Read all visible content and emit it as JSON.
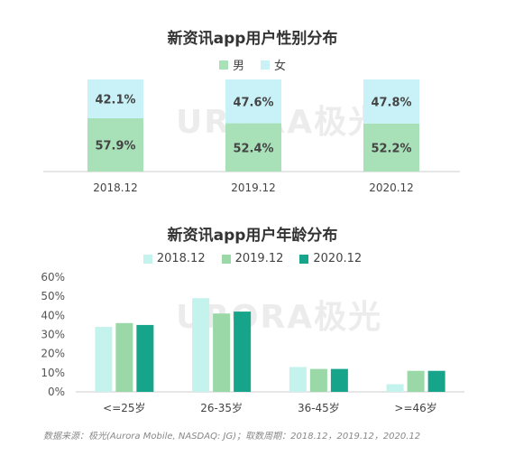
{
  "chart_data": [
    {
      "type": "bar",
      "stacked": true,
      "title": "新资讯app用户性别分布",
      "categories": [
        "2018.12",
        "2019.12",
        "2020.12"
      ],
      "series": [
        {
          "name": "男",
          "values": [
            57.9,
            52.4,
            52.2
          ],
          "labels": [
            "57.9%",
            "52.4%",
            "52.2%"
          ],
          "color": "#a8e0b8"
        },
        {
          "name": "女",
          "values": [
            42.1,
            47.6,
            47.8
          ],
          "labels": [
            "42.1%",
            "47.6%",
            "47.8%"
          ],
          "color": "#c8f2f8"
        }
      ],
      "ylim": [
        0,
        100
      ],
      "legend": "top-center",
      "grid": false
    },
    {
      "type": "bar",
      "title": "新资讯app用户年龄分布",
      "categories": [
        "<=25岁",
        "26-35岁",
        "36-45岁",
        ">=46岁"
      ],
      "series": [
        {
          "name": "2018.12",
          "values": [
            34,
            49,
            13,
            4
          ],
          "color": "#c4f3ee"
        },
        {
          "name": "2019.12",
          "values": [
            36,
            41,
            12,
            11
          ],
          "color": "#9ad8a8"
        },
        {
          "name": "2020.12",
          "values": [
            35,
            42,
            12,
            11
          ],
          "color": "#16a58a"
        }
      ],
      "yticks": [
        "0%",
        "10%",
        "20%",
        "30%",
        "40%",
        "50%",
        "60%"
      ],
      "ylim": [
        0,
        60
      ],
      "legend": "top-center",
      "grid": false
    }
  ],
  "watermark": "URORA极光",
  "source_note": "数据来源：极光(Aurora Mobile, NASDAQ: JG)；取数周期：2018.12，2019.12，2020.12"
}
